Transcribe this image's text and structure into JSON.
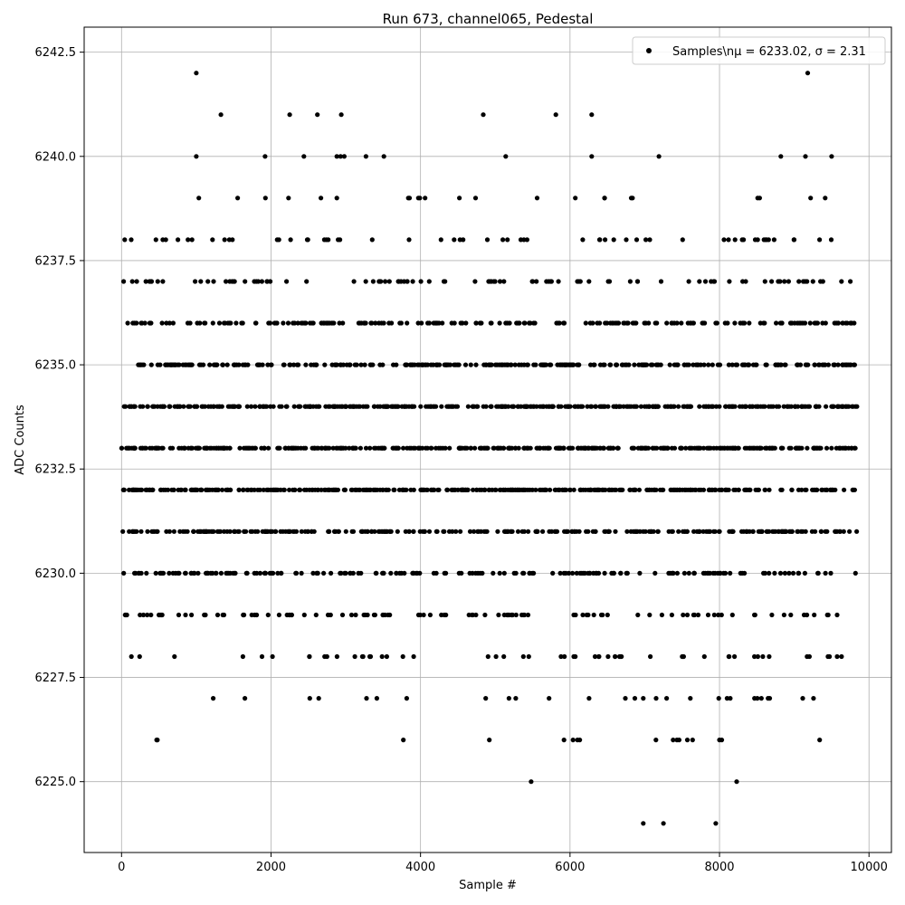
{
  "chart_data": {
    "type": "scatter",
    "title": "Run 673, channel065, Pedestal",
    "xlabel": "Sample #",
    "ylabel": "ADC Counts",
    "xlim": [
      -500,
      10300
    ],
    "ylim": [
      6223.3,
      6243.1
    ],
    "xticks": [
      0,
      2000,
      4000,
      6000,
      8000,
      10000
    ],
    "xtick_labels": [
      "0",
      "2000",
      "4000",
      "6000",
      "8000",
      "10000"
    ],
    "yticks": [
      6225.0,
      6227.5,
      6230.0,
      6232.5,
      6235.0,
      6237.5,
      6240.0,
      6242.5
    ],
    "ytick_labels": [
      "6225.0",
      "6227.5",
      "6230.0",
      "6232.5",
      "6235.0",
      "6237.5",
      "6240.0",
      "6242.5"
    ],
    "grid": true,
    "legend": {
      "placement": "top-right",
      "label": "Samples\\nμ = 6233.02, σ = 2.31"
    },
    "marker_color": "#000000",
    "series": [
      {
        "name": "Samples\\nμ = 6233.02, σ = 2.31",
        "x_range": [
          0,
          9840
        ],
        "mean": 6233.02,
        "sigma": 2.31,
        "points": [
          [
            1000,
            6242
          ],
          [
            9180,
            6242
          ],
          [
            1330,
            6241
          ],
          [
            2250,
            6241
          ],
          [
            2620,
            6241
          ],
          [
            2940,
            6241
          ],
          [
            4840,
            6241
          ],
          [
            5810,
            6241
          ],
          [
            6290,
            6241
          ],
          [
            1000,
            6240
          ],
          [
            1920,
            6240
          ],
          [
            2440,
            6240
          ],
          [
            2880,
            6240
          ],
          [
            2930,
            6240
          ],
          [
            2980,
            6240
          ],
          [
            3270,
            6240
          ],
          [
            3510,
            6240
          ],
          [
            5140,
            6240
          ],
          [
            6290,
            6240
          ],
          [
            7190,
            6240
          ],
          [
            8820,
            6240
          ],
          [
            9150,
            6240
          ],
          [
            9500,
            6240
          ],
          [
            470,
            6226
          ],
          [
            480,
            6226
          ],
          [
            3770,
            6226
          ],
          [
            4920,
            6226
          ],
          [
            5920,
            6226
          ],
          [
            6040,
            6226
          ],
          [
            6100,
            6226
          ],
          [
            6130,
            6226
          ],
          [
            7150,
            6226
          ],
          [
            7380,
            6226
          ],
          [
            7430,
            6226
          ],
          [
            7460,
            6226
          ],
          [
            7570,
            6226
          ],
          [
            7640,
            6226
          ],
          [
            8000,
            6226
          ],
          [
            8030,
            6226
          ],
          [
            9340,
            6226
          ],
          [
            5480,
            6225
          ],
          [
            8230,
            6225
          ],
          [
            6980,
            6224
          ],
          [
            7250,
            6224
          ],
          [
            7950,
            6224
          ]
        ]
      }
    ]
  }
}
